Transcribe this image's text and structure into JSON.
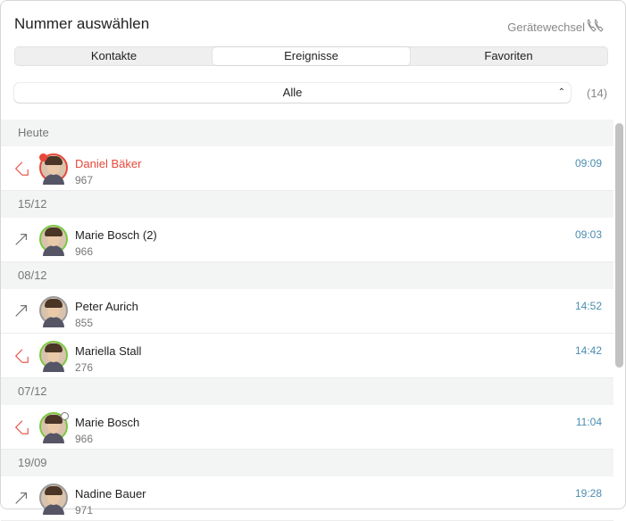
{
  "header": {
    "title": "Nummer auswählen",
    "device_switch_label": "Gerätewechsel"
  },
  "tabs": [
    {
      "label": "Kontakte",
      "active": false
    },
    {
      "label": "Ereignisse",
      "active": true
    },
    {
      "label": "Favoriten",
      "active": false
    }
  ],
  "filter": {
    "value": "Alle",
    "count": "(14)"
  },
  "colors": {
    "missed": "#e8473a",
    "available": "#7ac943",
    "offline": "#9a9a9a",
    "time": "#4b8db0"
  },
  "sections": [
    {
      "label": "Heute",
      "items": [
        {
          "name": "Daniel Bäker",
          "number": "967",
          "time": "09:09",
          "direction": "incoming-missed",
          "status": "missed",
          "missed": true
        }
      ]
    },
    {
      "label": "15/12",
      "items": [
        {
          "name": "Marie Bosch (2)",
          "number": "966",
          "time": "09:03",
          "direction": "outgoing",
          "status": "available"
        }
      ]
    },
    {
      "label": "08/12",
      "items": [
        {
          "name": "Peter Aurich",
          "number": "855",
          "time": "14:52",
          "direction": "outgoing",
          "status": "offline"
        },
        {
          "name": "Mariella Stall",
          "number": "276",
          "time": "14:42",
          "direction": "incoming-missed",
          "status": "available"
        }
      ]
    },
    {
      "label": "07/12",
      "items": [
        {
          "name": "Marie Bosch",
          "number": "966",
          "time": "11:04",
          "direction": "incoming-missed",
          "status": "available",
          "away": true
        }
      ]
    },
    {
      "label": "19/09",
      "items": [
        {
          "name": "Nadine Bauer",
          "number": "971",
          "time": "19:28",
          "direction": "outgoing",
          "status": "offline"
        }
      ]
    }
  ]
}
